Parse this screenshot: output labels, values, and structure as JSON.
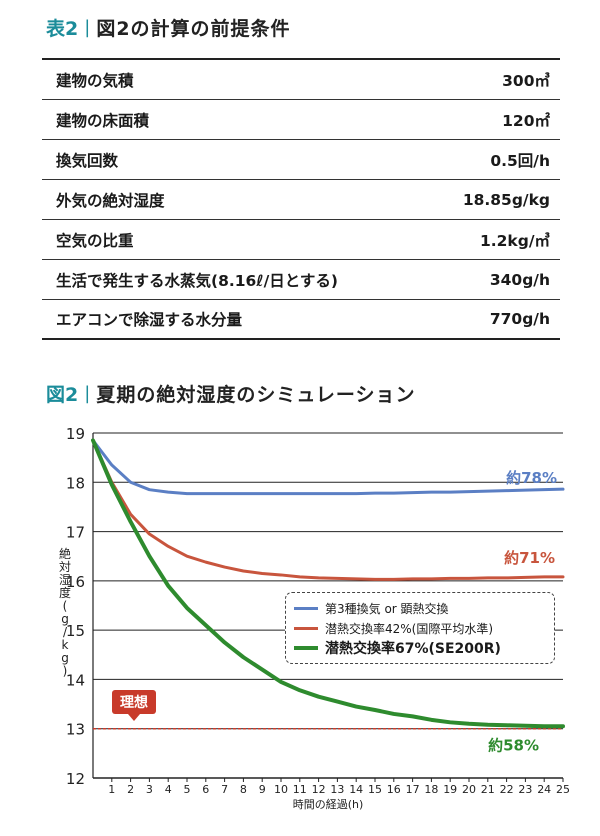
{
  "table": {
    "tag": "表2",
    "title": "図2の計算の前提条件",
    "rows": [
      {
        "label": "建物の気積",
        "value": "300㎥"
      },
      {
        "label": "建物の床面積",
        "value": "120㎡"
      },
      {
        "label": "換気回数",
        "value": "0.5回/h"
      },
      {
        "label": "外気の絶対湿度",
        "value": "18.85g/kg"
      },
      {
        "label": "空気の比重",
        "value": "1.2kg/㎥"
      },
      {
        "label": "生活で発生する水蒸気(8.16ℓ/日とする)",
        "value": "340g/h"
      },
      {
        "label": "エアコンで除湿する水分量",
        "value": "770g/h"
      }
    ]
  },
  "chart_heading": {
    "tag": "図2",
    "title": "夏期の絶対湿度のシミュレーション"
  },
  "ideal_label": "理想",
  "chart_data": {
    "type": "line",
    "title": "夏期の絶対湿度のシミュレーション",
    "xlabel": "時間の経過(h)",
    "ylabel": "絶対湿度(g/kg)",
    "ylim": [
      12,
      19
    ],
    "xlim": [
      0,
      25
    ],
    "grid": true,
    "legend_position": "middle-right",
    "x": [
      0,
      1,
      2,
      3,
      4,
      5,
      6,
      7,
      8,
      9,
      10,
      11,
      12,
      13,
      14,
      15,
      16,
      17,
      18,
      19,
      20,
      21,
      22,
      23,
      24,
      25
    ],
    "x_ticks": [
      "1",
      "2",
      "3",
      "4",
      "5",
      "6",
      "7",
      "8",
      "9",
      "10",
      "11",
      "12",
      "13",
      "14",
      "15",
      "16",
      "17",
      "18",
      "19",
      "20",
      "21",
      "22",
      "23",
      "24",
      "25"
    ],
    "y_ticks": [
      "12",
      "13",
      "14",
      "15",
      "16",
      "17",
      "18",
      "19"
    ],
    "ideal_line": 13.0,
    "series": [
      {
        "name": "第3種換気 or 顕熱交換",
        "color": "#5b7fc4",
        "bold": false,
        "end_label": "約78%",
        "values": [
          18.85,
          18.35,
          18.0,
          17.85,
          17.8,
          17.77,
          17.77,
          17.77,
          17.77,
          17.77,
          17.77,
          17.77,
          17.77,
          17.77,
          17.77,
          17.78,
          17.78,
          17.79,
          17.8,
          17.8,
          17.81,
          17.82,
          17.83,
          17.84,
          17.85,
          17.86
        ]
      },
      {
        "name": "潜熱交換率42%(国際平均水準)",
        "color": "#c8553d",
        "bold": false,
        "end_label": "約71%",
        "values": [
          18.85,
          18.0,
          17.35,
          16.95,
          16.7,
          16.5,
          16.38,
          16.28,
          16.2,
          16.15,
          16.12,
          16.08,
          16.06,
          16.05,
          16.04,
          16.03,
          16.03,
          16.04,
          16.04,
          16.05,
          16.05,
          16.06,
          16.06,
          16.07,
          16.08,
          16.08
        ]
      },
      {
        "name": "潜熱交換率67%(SE200R)",
        "color": "#2e8b2e",
        "bold": true,
        "end_label": "約58%",
        "values": [
          18.85,
          17.95,
          17.2,
          16.5,
          15.9,
          15.45,
          15.1,
          14.75,
          14.45,
          14.2,
          13.95,
          13.78,
          13.65,
          13.55,
          13.45,
          13.38,
          13.3,
          13.25,
          13.18,
          13.13,
          13.1,
          13.08,
          13.07,
          13.06,
          13.05,
          13.05
        ]
      }
    ]
  }
}
